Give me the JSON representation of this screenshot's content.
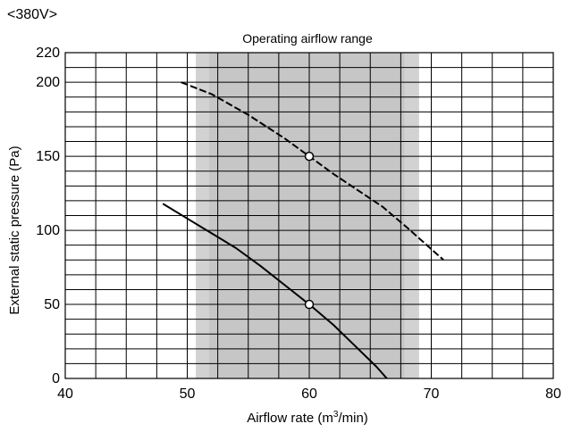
{
  "chart_data": {
    "type": "line",
    "header_label": "<380V>",
    "xlabel_main": "Airflow rate (m",
    "xlabel_sup": "3",
    "xlabel_tail": "/min)",
    "ylabel": "External static pressure (Pa)",
    "xlim": [
      40,
      80
    ],
    "ylim": [
      0,
      220
    ],
    "x_ticks": [
      40,
      50,
      60,
      70,
      80
    ],
    "y_ticks": [
      0,
      50,
      100,
      150,
      200,
      220
    ],
    "x_minor_step": 2.5,
    "y_minor_step": 10,
    "grid": true,
    "band": {
      "label": "Operating airflow range",
      "x_start": 50.7,
      "x_end": 69.0,
      "inner_start": 51.8,
      "inner_end": 67.8,
      "color_outer": "#d2d2d2",
      "color_inner": "#c6c6c6"
    },
    "series": [
      {
        "style": "dashed",
        "color": "#000000",
        "x": [
          49.5,
          52,
          55,
          58,
          60,
          62,
          64,
          66,
          68,
          69.5,
          71
        ],
        "y": [
          200,
          192,
          178,
          162,
          150,
          138,
          127,
          116,
          102,
          91,
          80
        ],
        "marker": {
          "x": 60,
          "y": 150
        }
      },
      {
        "style": "solid",
        "color": "#000000",
        "x": [
          48,
          50,
          52,
          54,
          56,
          58,
          60,
          62,
          64,
          65.5,
          67
        ],
        "y": [
          118,
          108,
          98,
          88,
          76,
          63,
          50,
          36,
          20,
          8,
          -6
        ],
        "marker": {
          "x": 60,
          "y": 50
        }
      }
    ]
  }
}
